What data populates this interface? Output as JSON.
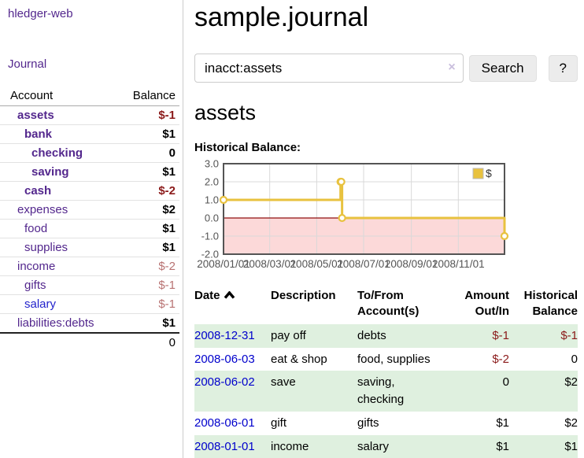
{
  "colors": {
    "purple": "#53278d",
    "blue": "#2323cc",
    "negative": "#8b1a1a",
    "negative_dim": "#b87272",
    "row_green": "#dff0df",
    "date_link": "#0000cc",
    "clear_icon": "#c9bedd"
  },
  "app": {
    "brand": "hledger-web",
    "nav_journal": "Journal"
  },
  "sidebar": {
    "header": {
      "account": "Account",
      "balance": "Balance"
    },
    "accounts": [
      {
        "name": "assets",
        "depth": 1,
        "bold": true,
        "balance": "$-1",
        "balance_style": "neg"
      },
      {
        "name": "bank",
        "depth": 2,
        "bold": true,
        "balance": "$1",
        "balance_style": "pos"
      },
      {
        "name": "checking",
        "depth": 3,
        "bold": true,
        "balance": "0",
        "balance_style": "pos"
      },
      {
        "name": "saving",
        "depth": 3,
        "bold": true,
        "balance": "$1",
        "balance_style": "pos"
      },
      {
        "name": "cash",
        "depth": 2,
        "bold": true,
        "balance": "$-2",
        "balance_style": "neg"
      },
      {
        "name": "expenses",
        "depth": 1,
        "bold": false,
        "balance": "$2",
        "balance_style": "pos"
      },
      {
        "name": "food",
        "depth": 2,
        "bold": false,
        "balance": "$1",
        "balance_style": "pos"
      },
      {
        "name": "supplies",
        "depth": 2,
        "bold": false,
        "balance": "$1",
        "balance_style": "pos"
      },
      {
        "name": "income",
        "depth": 1,
        "bold": false,
        "balance": "$-2",
        "balance_style": "dimneg"
      },
      {
        "name": "gifts",
        "depth": 2,
        "bold": false,
        "balance": "$-1",
        "balance_style": "dimneg"
      },
      {
        "name": "salary",
        "depth": 2,
        "bold": false,
        "balance": "$-1",
        "balance_style": "dimneg",
        "link_color": "blue"
      },
      {
        "name": "liabilities:debts",
        "depth": 1,
        "bold": false,
        "balance": "$1",
        "balance_style": "pos"
      }
    ],
    "total": "0"
  },
  "header": {
    "title": "sample.journal"
  },
  "search": {
    "query": "inacct:assets",
    "clear_glyph": "×",
    "button_label": "Search",
    "help_label": "?"
  },
  "account_page": {
    "heading": "assets",
    "chart_title": "Historical Balance:"
  },
  "chart_data": {
    "type": "line",
    "step": true,
    "title": "Historical Balance:",
    "xlim": [
      "2008-01-01",
      "2008-12-31"
    ],
    "ylim": [
      -2,
      3
    ],
    "y_ticks": [
      3.0,
      2.0,
      1.0,
      0.0,
      -1.0,
      -2.0
    ],
    "x_ticks": [
      {
        "label": "2008/01/01",
        "date": "2008-01-01"
      },
      {
        "label": "2008/03/01",
        "date": "2008-03-01"
      },
      {
        "label": "2008/05/01",
        "date": "2008-05-01"
      },
      {
        "label": "2008/07/01",
        "date": "2008-07-01"
      },
      {
        "label": "2008/09/01",
        "date": "2008-09-01"
      },
      {
        "label": "2008/11/01",
        "date": "2008-11-01"
      }
    ],
    "grid": true,
    "legend_position": "top-right",
    "series": [
      {
        "name": "$",
        "color": "#e8c23f",
        "points": [
          [
            "2008-01-01",
            1
          ],
          [
            "2008-06-01",
            2
          ],
          [
            "2008-06-02",
            2
          ],
          [
            "2008-06-03",
            0
          ],
          [
            "2008-12-31",
            -1
          ]
        ]
      }
    ],
    "negative_region_fill": "#fcd9d9",
    "zero_line_color": "#8f0f0f",
    "grid_color": "#d9d9d9",
    "border_color": "#545454",
    "tick_label_color": "#545454"
  },
  "register": {
    "columns": [
      "Date",
      "Description",
      "To/From Account(s)",
      "Amount Out/In",
      "Historical Balance"
    ],
    "rows": [
      {
        "date": "2008-12-31",
        "description": "pay off",
        "accounts": "debts",
        "amount": "$-1",
        "balance": "$-1"
      },
      {
        "date": "2008-06-03",
        "description": "eat & shop",
        "accounts": "food, supplies",
        "amount": "$-2",
        "balance": "0"
      },
      {
        "date": "2008-06-02",
        "description": "save",
        "accounts": "saving, checking",
        "amount": "0",
        "balance": "$2"
      },
      {
        "date": "2008-06-01",
        "description": "gift",
        "accounts": "gifts",
        "amount": "$1",
        "balance": "$2"
      },
      {
        "date": "2008-01-01",
        "description": "income",
        "accounts": "salary",
        "amount": "$1",
        "balance": "$1"
      }
    ]
  }
}
